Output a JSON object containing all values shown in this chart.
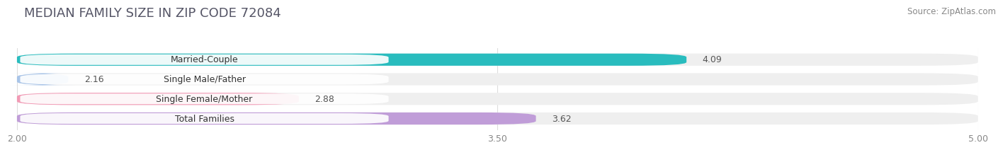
{
  "title": "MEDIAN FAMILY SIZE IN ZIP CODE 72084",
  "source": "Source: ZipAtlas.com",
  "categories": [
    "Married-Couple",
    "Single Male/Father",
    "Single Female/Mother",
    "Total Families"
  ],
  "values": [
    4.09,
    2.16,
    2.88,
    3.62
  ],
  "bar_colors": [
    "#29bcbe",
    "#a8c4e8",
    "#f29ab5",
    "#c09dd8"
  ],
  "xmin": 2.0,
  "xmax": 5.0,
  "xticks": [
    2.0,
    3.5,
    5.0
  ],
  "xtick_labels": [
    "2.00",
    "3.50",
    "5.00"
  ],
  "background_color": "#ffffff",
  "bar_bg_color": "#efefef",
  "title_fontsize": 13,
  "label_fontsize": 9,
  "value_fontsize": 9,
  "tick_fontsize": 9,
  "source_fontsize": 8.5
}
